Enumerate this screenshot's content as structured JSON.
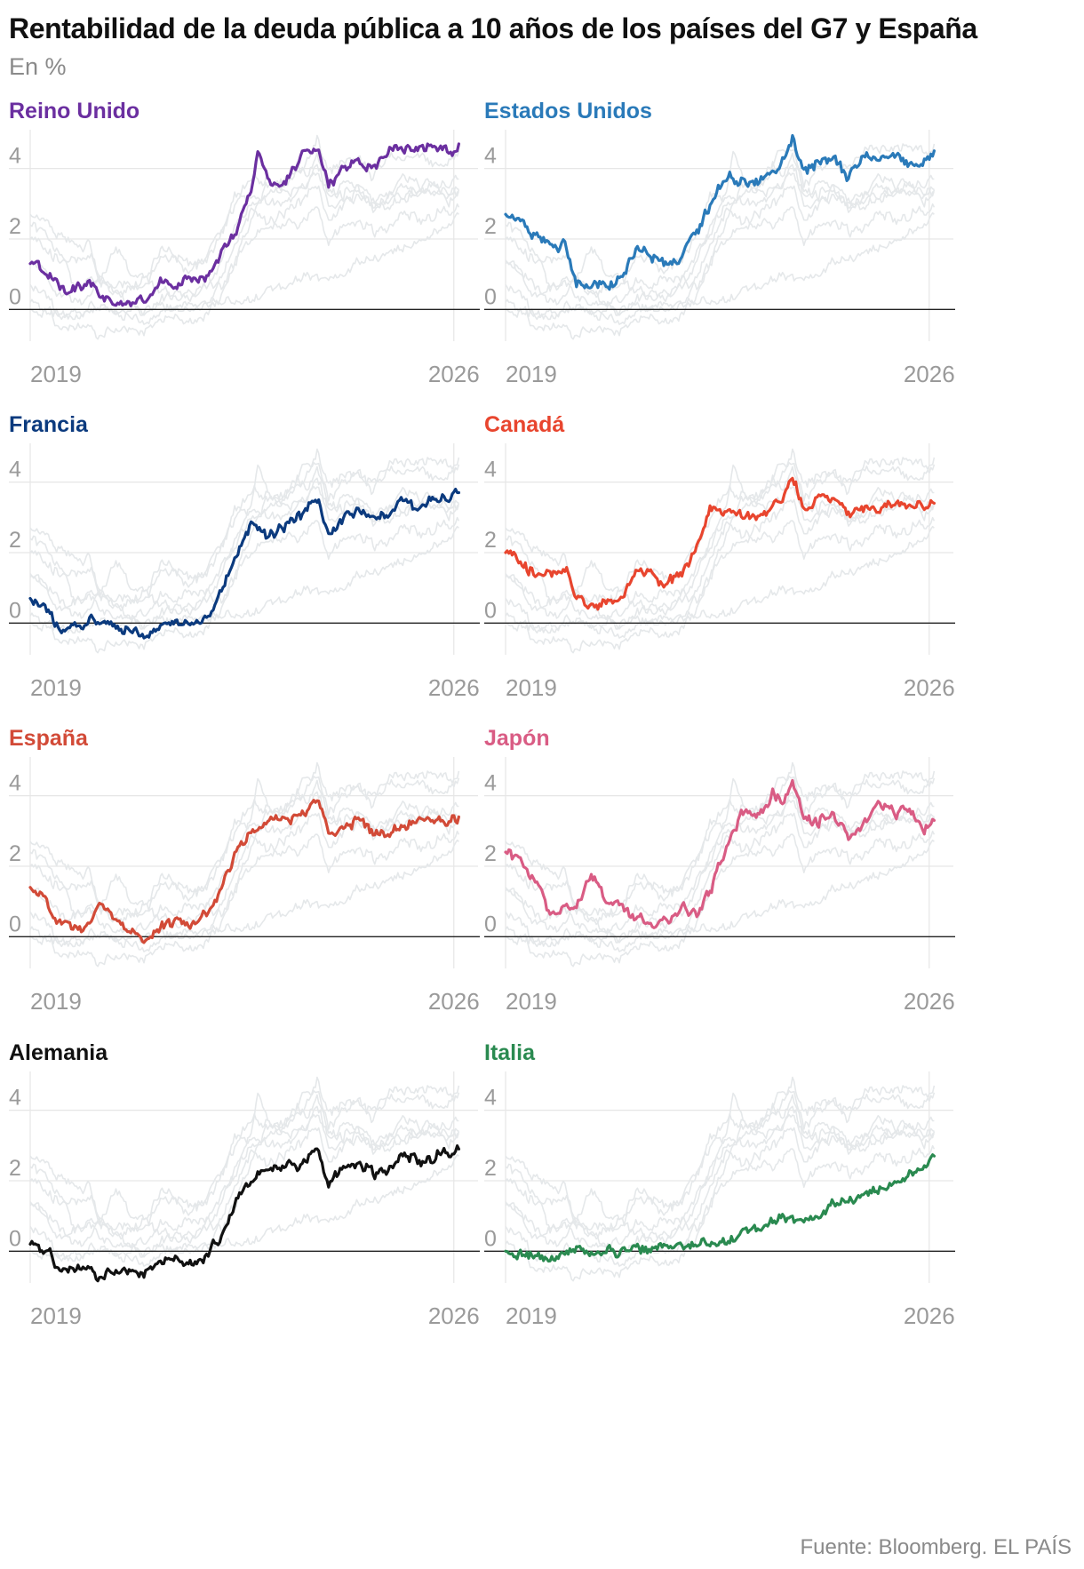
{
  "title": "Rentabilidad de la deuda pública a 10 años de los países del G7 y España",
  "subtitle": "En %",
  "source": "Fuente: Bloomberg. EL PAÍS",
  "chart_data": [
    {
      "type": "line",
      "title": "Reino Unido",
      "color": "#6b2fa0",
      "x_tick_labels": [
        "2019",
        "2026"
      ],
      "y_tick_labels": [
        "0",
        "2",
        "4"
      ],
      "ylim": [
        -0.9,
        5.1
      ],
      "grid": true,
      "series": [
        {
          "x": [
            "2019-01",
            "2019-04",
            "2019-07",
            "2019-10",
            "2020-01",
            "2020-03",
            "2020-06",
            "2020-09",
            "2020-12",
            "2021-03",
            "2021-06",
            "2021-09",
            "2021-12",
            "2022-03",
            "2022-06",
            "2022-09",
            "2022-10",
            "2022-12",
            "2023-03",
            "2023-06",
            "2023-08",
            "2023-10",
            "2023-12",
            "2024-03",
            "2024-06",
            "2024-09",
            "2024-12",
            "2025-03",
            "2025-06",
            "2025-09",
            "2025-12",
            "2026-02"
          ],
          "values": [
            1.3,
            1.1,
            0.7,
            0.6,
            0.7,
            0.3,
            0.2,
            0.2,
            0.3,
            0.8,
            0.7,
            0.9,
            0.9,
            1.6,
            2.3,
            3.5,
            4.5,
            3.7,
            3.5,
            4.2,
            4.6,
            4.5,
            3.6,
            4.0,
            4.2,
            4.0,
            4.6,
            4.6,
            4.5,
            4.7,
            4.5,
            4.7
          ]
        }
      ]
    },
    {
      "type": "line",
      "title": "Estados Unidos",
      "color": "#2a7ab9",
      "x_tick_labels": [
        "2019",
        "2026"
      ],
      "y_tick_labels": [
        "0",
        "2",
        "4"
      ],
      "ylim": [
        -0.9,
        5.1
      ],
      "grid": true,
      "series": [
        {
          "x": [
            "2019-01",
            "2019-04",
            "2019-07",
            "2019-10",
            "2020-01",
            "2020-03",
            "2020-06",
            "2020-09",
            "2020-12",
            "2021-03",
            "2021-06",
            "2021-09",
            "2021-12",
            "2022-03",
            "2022-06",
            "2022-09",
            "2022-12",
            "2023-03",
            "2023-06",
            "2023-08",
            "2023-10",
            "2023-12",
            "2024-03",
            "2024-06",
            "2024-09",
            "2024-12",
            "2025-03",
            "2025-06",
            "2025-09",
            "2025-12",
            "2026-02"
          ],
          "values": [
            2.7,
            2.5,
            2.0,
            1.8,
            1.8,
            0.7,
            0.7,
            0.7,
            0.9,
            1.7,
            1.4,
            1.3,
            1.5,
            2.3,
            3.0,
            3.8,
            3.6,
            3.5,
            3.8,
            4.2,
            4.9,
            3.9,
            4.2,
            4.3,
            3.7,
            4.5,
            4.3,
            4.4,
            4.1,
            4.2,
            4.5
          ]
        }
      ]
    },
    {
      "type": "line",
      "title": "Francia",
      "color": "#0b3a7e",
      "x_tick_labels": [
        "2019",
        "2026"
      ],
      "y_tick_labels": [
        "0",
        "2",
        "4"
      ],
      "ylim": [
        -0.9,
        5.1
      ],
      "grid": true,
      "series": [
        {
          "x": [
            "2019-01",
            "2019-04",
            "2019-07",
            "2019-10",
            "2020-01",
            "2020-03",
            "2020-06",
            "2020-09",
            "2020-12",
            "2021-03",
            "2021-06",
            "2021-09",
            "2021-12",
            "2022-03",
            "2022-06",
            "2022-09",
            "2022-12",
            "2023-03",
            "2023-06",
            "2023-08",
            "2023-10",
            "2023-12",
            "2024-03",
            "2024-06",
            "2024-09",
            "2024-12",
            "2025-03",
            "2025-06",
            "2025-09",
            "2025-12",
            "2026-02"
          ],
          "values": [
            0.7,
            0.4,
            -0.2,
            -0.1,
            0.0,
            0.1,
            -0.1,
            -0.2,
            -0.3,
            -0.1,
            0.1,
            -0.1,
            0.1,
            0.9,
            2.0,
            2.8,
            2.5,
            2.8,
            3.0,
            3.2,
            3.5,
            2.6,
            2.9,
            3.2,
            2.9,
            3.2,
            3.5,
            3.2,
            3.5,
            3.5,
            3.7
          ]
        }
      ]
    },
    {
      "type": "line",
      "title": "Canadá",
      "color": "#e8452e",
      "x_tick_labels": [
        "2019",
        "2026"
      ],
      "y_tick_labels": [
        "0",
        "2",
        "4"
      ],
      "ylim": [
        -0.9,
        5.1
      ],
      "grid": true,
      "series": [
        {
          "x": [
            "2019-01",
            "2019-04",
            "2019-07",
            "2019-10",
            "2020-01",
            "2020-03",
            "2020-06",
            "2020-09",
            "2020-12",
            "2021-03",
            "2021-06",
            "2021-09",
            "2021-12",
            "2022-03",
            "2022-06",
            "2022-09",
            "2022-12",
            "2023-03",
            "2023-06",
            "2023-08",
            "2023-10",
            "2023-12",
            "2024-03",
            "2024-06",
            "2024-09",
            "2024-12",
            "2025-03",
            "2025-06",
            "2025-09",
            "2025-12",
            "2026-02"
          ],
          "values": [
            2.0,
            1.7,
            1.4,
            1.5,
            1.6,
            0.7,
            0.5,
            0.6,
            0.7,
            1.5,
            1.4,
            1.1,
            1.4,
            2.2,
            3.3,
            3.2,
            3.0,
            3.0,
            3.4,
            3.7,
            4.2,
            3.2,
            3.5,
            3.5,
            3.0,
            3.3,
            3.2,
            3.4,
            3.2,
            3.3,
            3.4
          ]
        }
      ]
    },
    {
      "type": "line",
      "title": "España",
      "color": "#d24a37",
      "x_tick_labels": [
        "2019",
        "2026"
      ],
      "y_tick_labels": [
        "0",
        "2",
        "4"
      ],
      "ylim": [
        -0.9,
        5.1
      ],
      "grid": true,
      "series": [
        {
          "x": [
            "2019-01",
            "2019-04",
            "2019-07",
            "2019-10",
            "2020-01",
            "2020-03",
            "2020-06",
            "2020-09",
            "2020-12",
            "2021-03",
            "2021-06",
            "2021-09",
            "2021-12",
            "2022-03",
            "2022-06",
            "2022-09",
            "2022-12",
            "2023-03",
            "2023-06",
            "2023-08",
            "2023-10",
            "2023-12",
            "2024-03",
            "2024-06",
            "2024-09",
            "2024-12",
            "2025-03",
            "2025-06",
            "2025-09",
            "2025-12",
            "2026-02"
          ],
          "values": [
            1.4,
            1.0,
            0.3,
            0.3,
            0.4,
            1.0,
            0.4,
            0.2,
            0.0,
            0.3,
            0.4,
            0.3,
            0.6,
            1.4,
            2.5,
            3.1,
            3.2,
            3.4,
            3.4,
            3.6,
            4.0,
            3.0,
            3.1,
            3.3,
            2.9,
            2.9,
            3.2,
            3.2,
            3.2,
            3.2,
            3.4
          ]
        }
      ]
    },
    {
      "type": "line",
      "title": "Japón",
      "color": "#d95c84",
      "x_tick_labels": [
        "2019",
        "2026"
      ],
      "y_tick_labels": [
        "0",
        "2",
        "4"
      ],
      "ylim": [
        -0.9,
        5.1
      ],
      "grid": true,
      "series": [
        {
          "x": [
            "2019-01",
            "2019-04",
            "2019-07",
            "2019-10",
            "2020-01",
            "2020-03",
            "2020-06",
            "2020-09",
            "2020-12",
            "2021-03",
            "2021-06",
            "2021-09",
            "2021-12",
            "2022-03",
            "2022-06",
            "2022-09",
            "2022-12",
            "2023-03",
            "2023-06",
            "2023-08",
            "2023-10",
            "2023-12",
            "2024-03",
            "2024-06",
            "2024-09",
            "2024-12",
            "2025-03",
            "2025-06",
            "2025-09",
            "2025-12",
            "2026-02"
          ],
          "values": [
            2.4,
            2.2,
            1.5,
            0.6,
            1.0,
            0.8,
            1.8,
            1.0,
            0.8,
            0.5,
            0.4,
            0.5,
            0.9,
            0.6,
            1.5,
            2.5,
            3.6,
            3.4,
            4.2,
            3.8,
            4.4,
            3.3,
            3.3,
            3.5,
            2.9,
            3.2,
            3.9,
            3.5,
            3.6,
            3.0,
            3.3
          ]
        }
      ]
    },
    {
      "type": "line",
      "title": "Alemania",
      "color": "#111111",
      "x_tick_labels": [
        "2019",
        "2026"
      ],
      "y_tick_labels": [
        "0",
        "2",
        "4"
      ],
      "ylim": [
        -0.9,
        5.1
      ],
      "grid": true,
      "series": [
        {
          "x": [
            "2019-01",
            "2019-04",
            "2019-07",
            "2019-10",
            "2020-01",
            "2020-03",
            "2020-06",
            "2020-09",
            "2020-12",
            "2021-03",
            "2021-06",
            "2021-09",
            "2021-12",
            "2022-03",
            "2022-06",
            "2022-09",
            "2022-12",
            "2023-03",
            "2023-06",
            "2023-08",
            "2023-10",
            "2023-12",
            "2024-03",
            "2024-06",
            "2024-09",
            "2024-12",
            "2025-03",
            "2025-06",
            "2025-09",
            "2025-12",
            "2026-02"
          ],
          "values": [
            0.2,
            0.0,
            -0.5,
            -0.4,
            -0.3,
            -0.8,
            -0.5,
            -0.5,
            -0.6,
            -0.3,
            -0.2,
            -0.3,
            -0.2,
            0.5,
            1.6,
            2.0,
            2.3,
            2.4,
            2.5,
            2.6,
            2.9,
            1.9,
            2.3,
            2.5,
            2.2,
            2.3,
            2.7,
            2.6,
            2.7,
            2.8,
            2.9
          ]
        }
      ]
    },
    {
      "type": "line",
      "title": "Italia",
      "color": "#2a8a50",
      "x_tick_labels": [
        "2019",
        "2026"
      ],
      "y_tick_labels": [
        "0",
        "2",
        "4"
      ],
      "ylim": [
        -0.9,
        5.1
      ],
      "grid": true,
      "series": [
        {
          "x": [
            "2019-01",
            "2019-04",
            "2019-07",
            "2019-10",
            "2020-01",
            "2020-03",
            "2020-06",
            "2020-09",
            "2020-12",
            "2021-03",
            "2021-06",
            "2021-09",
            "2021-12",
            "2022-03",
            "2022-06",
            "2022-09",
            "2022-12",
            "2023-03",
            "2023-06",
            "2023-08",
            "2023-10",
            "2023-12",
            "2024-03",
            "2024-06",
            "2024-09",
            "2024-12",
            "2025-03",
            "2025-06",
            "2025-09",
            "2025-12",
            "2026-02"
          ],
          "values": [
            0.0,
            -0.1,
            -0.1,
            -0.2,
            -0.1,
            0.0,
            0.0,
            0.0,
            0.0,
            0.1,
            0.1,
            0.1,
            0.1,
            0.2,
            0.3,
            0.3,
            0.5,
            0.6,
            0.8,
            0.9,
            0.8,
            0.8,
            1.0,
            1.3,
            1.5,
            1.6,
            1.8,
            1.9,
            2.1,
            2.4,
            2.7
          ]
        }
      ]
    }
  ]
}
